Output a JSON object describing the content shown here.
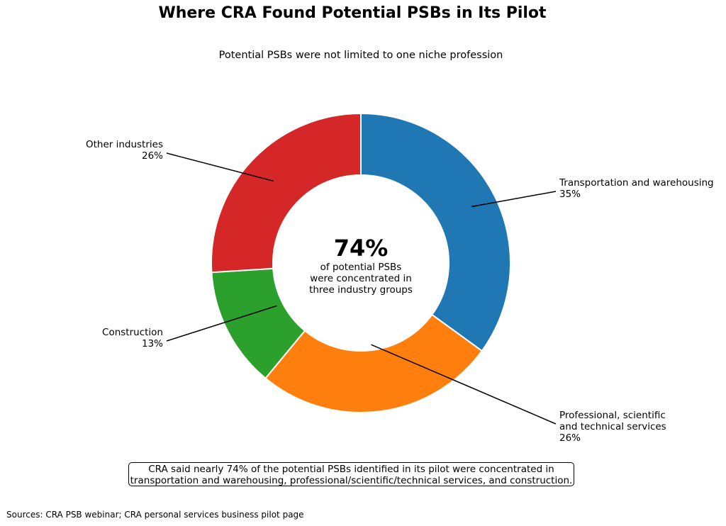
{
  "title": "Where CRA Found Potential PSBs in Its Pilot",
  "subtitle": "Potential PSBs were not limited to one niche profession",
  "center": {
    "value": "74%",
    "lines": [
      "of potential PSBs",
      "were concentrated in",
      "three industry groups"
    ]
  },
  "note": {
    "lines": [
      "CRA said nearly 74% of the potential PSBs identified in its pilot were concentrated in",
      "transportation and warehousing, professional/scientific/technical services, and construction."
    ]
  },
  "source": "Sources: CRA PSB webinar; CRA personal services business pilot page",
  "chart_data": {
    "type": "pie",
    "donut": true,
    "title": "Where CRA Found Potential PSBs in Its Pilot",
    "subtitle": "Potential PSBs were not limited to one niche profession",
    "slices": [
      {
        "label": "Transportation and warehousing",
        "value": 35,
        "value_label": "35%",
        "color": "#1f77b4"
      },
      {
        "label": "Professional, scientific and technical services",
        "label_lines": [
          "Professional, scientific",
          "and technical services"
        ],
        "value": 26,
        "value_label": "26%",
        "color": "#ff7f0e"
      },
      {
        "label": "Construction",
        "value": 13,
        "value_label": "13%",
        "color": "#2ca02c"
      },
      {
        "label": "Other industries",
        "value": 26,
        "value_label": "26%",
        "color": "#d62728"
      }
    ],
    "start": "12 o'clock",
    "direction": "clockwise"
  }
}
